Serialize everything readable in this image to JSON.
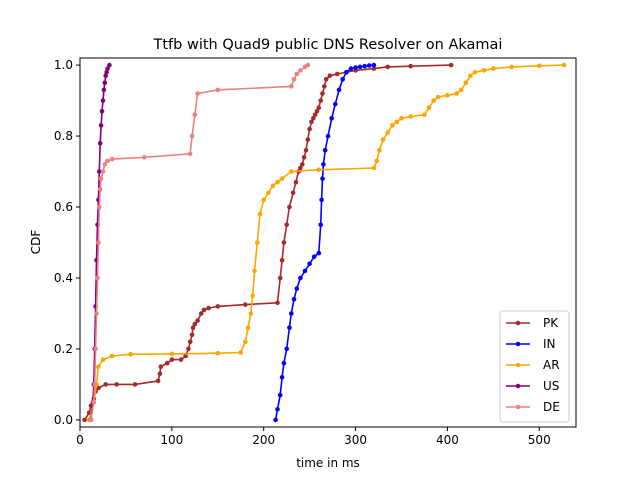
{
  "chart_data": {
    "type": "line",
    "title": "Ttfb with Quad9 public DNS Resolver on Akamai",
    "xlabel": "time in ms",
    "ylabel": "CDF",
    "xlim": [
      0,
      540
    ],
    "ylim": [
      -0.02,
      1.02
    ],
    "xticks": [
      0,
      100,
      200,
      300,
      400,
      500
    ],
    "yticks": [
      0.0,
      0.2,
      0.4,
      0.6,
      0.8,
      1.0
    ],
    "xtick_labels": [
      "0",
      "100",
      "200",
      "300",
      "400",
      "500"
    ],
    "ytick_labels": [
      "0.0",
      "0.2",
      "0.4",
      "0.6",
      "0.8",
      "1.0"
    ],
    "grid": false,
    "legend_position": "lower-right",
    "series": [
      {
        "name": "PK",
        "color": "#a52a2a",
        "x": [
          5,
          10,
          12,
          15,
          17,
          20,
          28,
          40,
          60,
          85,
          87,
          88,
          95,
          100,
          110,
          115,
          118,
          120,
          122,
          123,
          125,
          128,
          132,
          135,
          140,
          150,
          180,
          215,
          218,
          220,
          222,
          225,
          228,
          232,
          235,
          238,
          240,
          242,
          244,
          246,
          248,
          250,
          252,
          254,
          256,
          258,
          260,
          262,
          264,
          266,
          268,
          272,
          280,
          290,
          300,
          320,
          335,
          360,
          404
        ],
        "y": [
          0.0,
          0.02,
          0.04,
          0.06,
          0.08,
          0.09,
          0.1,
          0.1,
          0.1,
          0.11,
          0.13,
          0.15,
          0.16,
          0.17,
          0.17,
          0.18,
          0.2,
          0.22,
          0.24,
          0.26,
          0.27,
          0.28,
          0.3,
          0.31,
          0.315,
          0.32,
          0.325,
          0.33,
          0.4,
          0.45,
          0.5,
          0.55,
          0.6,
          0.64,
          0.67,
          0.7,
          0.71,
          0.72,
          0.74,
          0.76,
          0.79,
          0.82,
          0.84,
          0.85,
          0.86,
          0.87,
          0.88,
          0.9,
          0.92,
          0.94,
          0.96,
          0.97,
          0.975,
          0.98,
          0.985,
          0.99,
          0.995,
          0.997,
          1.0
        ]
      },
      {
        "name": "IN",
        "color": "#0000ff",
        "x": [
          213,
          215,
          218,
          220,
          222,
          225,
          228,
          230,
          233,
          236,
          240,
          245,
          250,
          255,
          260,
          262,
          263,
          264,
          265,
          267,
          270,
          274,
          278,
          282,
          286,
          290,
          295,
          300,
          305,
          310,
          315,
          320
        ],
        "y": [
          0.0,
          0.03,
          0.07,
          0.12,
          0.16,
          0.2,
          0.26,
          0.3,
          0.34,
          0.37,
          0.4,
          0.42,
          0.44,
          0.46,
          0.47,
          0.55,
          0.62,
          0.68,
          0.72,
          0.76,
          0.8,
          0.85,
          0.89,
          0.93,
          0.96,
          0.98,
          0.99,
          0.993,
          0.995,
          0.997,
          0.999,
          1.0
        ]
      },
      {
        "name": "AR",
        "color": "#ffa500",
        "x": [
          10,
          15,
          18,
          20,
          25,
          35,
          55,
          100,
          150,
          175,
          180,
          183,
          186,
          188,
          190,
          193,
          196,
          200,
          205,
          210,
          215,
          220,
          230,
          260,
          320,
          323,
          326,
          330,
          335,
          340,
          345,
          350,
          360,
          375,
          380,
          385,
          390,
          400,
          410,
          415,
          420,
          425,
          430,
          440,
          450,
          470,
          500,
          527
        ],
        "y": [
          0.0,
          0.05,
          0.1,
          0.15,
          0.17,
          0.18,
          0.185,
          0.186,
          0.188,
          0.19,
          0.22,
          0.26,
          0.3,
          0.35,
          0.42,
          0.5,
          0.58,
          0.62,
          0.64,
          0.66,
          0.67,
          0.68,
          0.7,
          0.705,
          0.71,
          0.73,
          0.76,
          0.79,
          0.81,
          0.83,
          0.84,
          0.85,
          0.855,
          0.86,
          0.88,
          0.9,
          0.91,
          0.915,
          0.92,
          0.93,
          0.95,
          0.97,
          0.98,
          0.985,
          0.99,
          0.995,
          0.998,
          1.0
        ]
      },
      {
        "name": "US",
        "color": "#800080",
        "x": [
          12,
          14,
          15,
          16,
          17,
          18,
          19,
          20,
          21,
          22,
          23,
          24,
          25,
          26,
          27,
          28,
          29,
          30,
          32
        ],
        "y": [
          0.0,
          0.05,
          0.1,
          0.2,
          0.32,
          0.45,
          0.55,
          0.62,
          0.7,
          0.78,
          0.83,
          0.87,
          0.9,
          0.93,
          0.95,
          0.97,
          0.98,
          0.99,
          1.0
        ]
      },
      {
        "name": "DE",
        "color": "#f08080",
        "x": [
          12,
          15,
          16,
          17,
          18,
          19,
          20,
          21,
          22,
          23,
          25,
          27,
          30,
          35,
          70,
          120,
          122,
          125,
          128,
          150,
          230,
          233,
          236,
          240,
          245,
          248
        ],
        "y": [
          0.0,
          0.05,
          0.1,
          0.2,
          0.3,
          0.4,
          0.5,
          0.6,
          0.65,
          0.68,
          0.7,
          0.72,
          0.73,
          0.735,
          0.74,
          0.75,
          0.8,
          0.86,
          0.92,
          0.93,
          0.94,
          0.96,
          0.975,
          0.985,
          0.995,
          1.0
        ]
      }
    ]
  }
}
